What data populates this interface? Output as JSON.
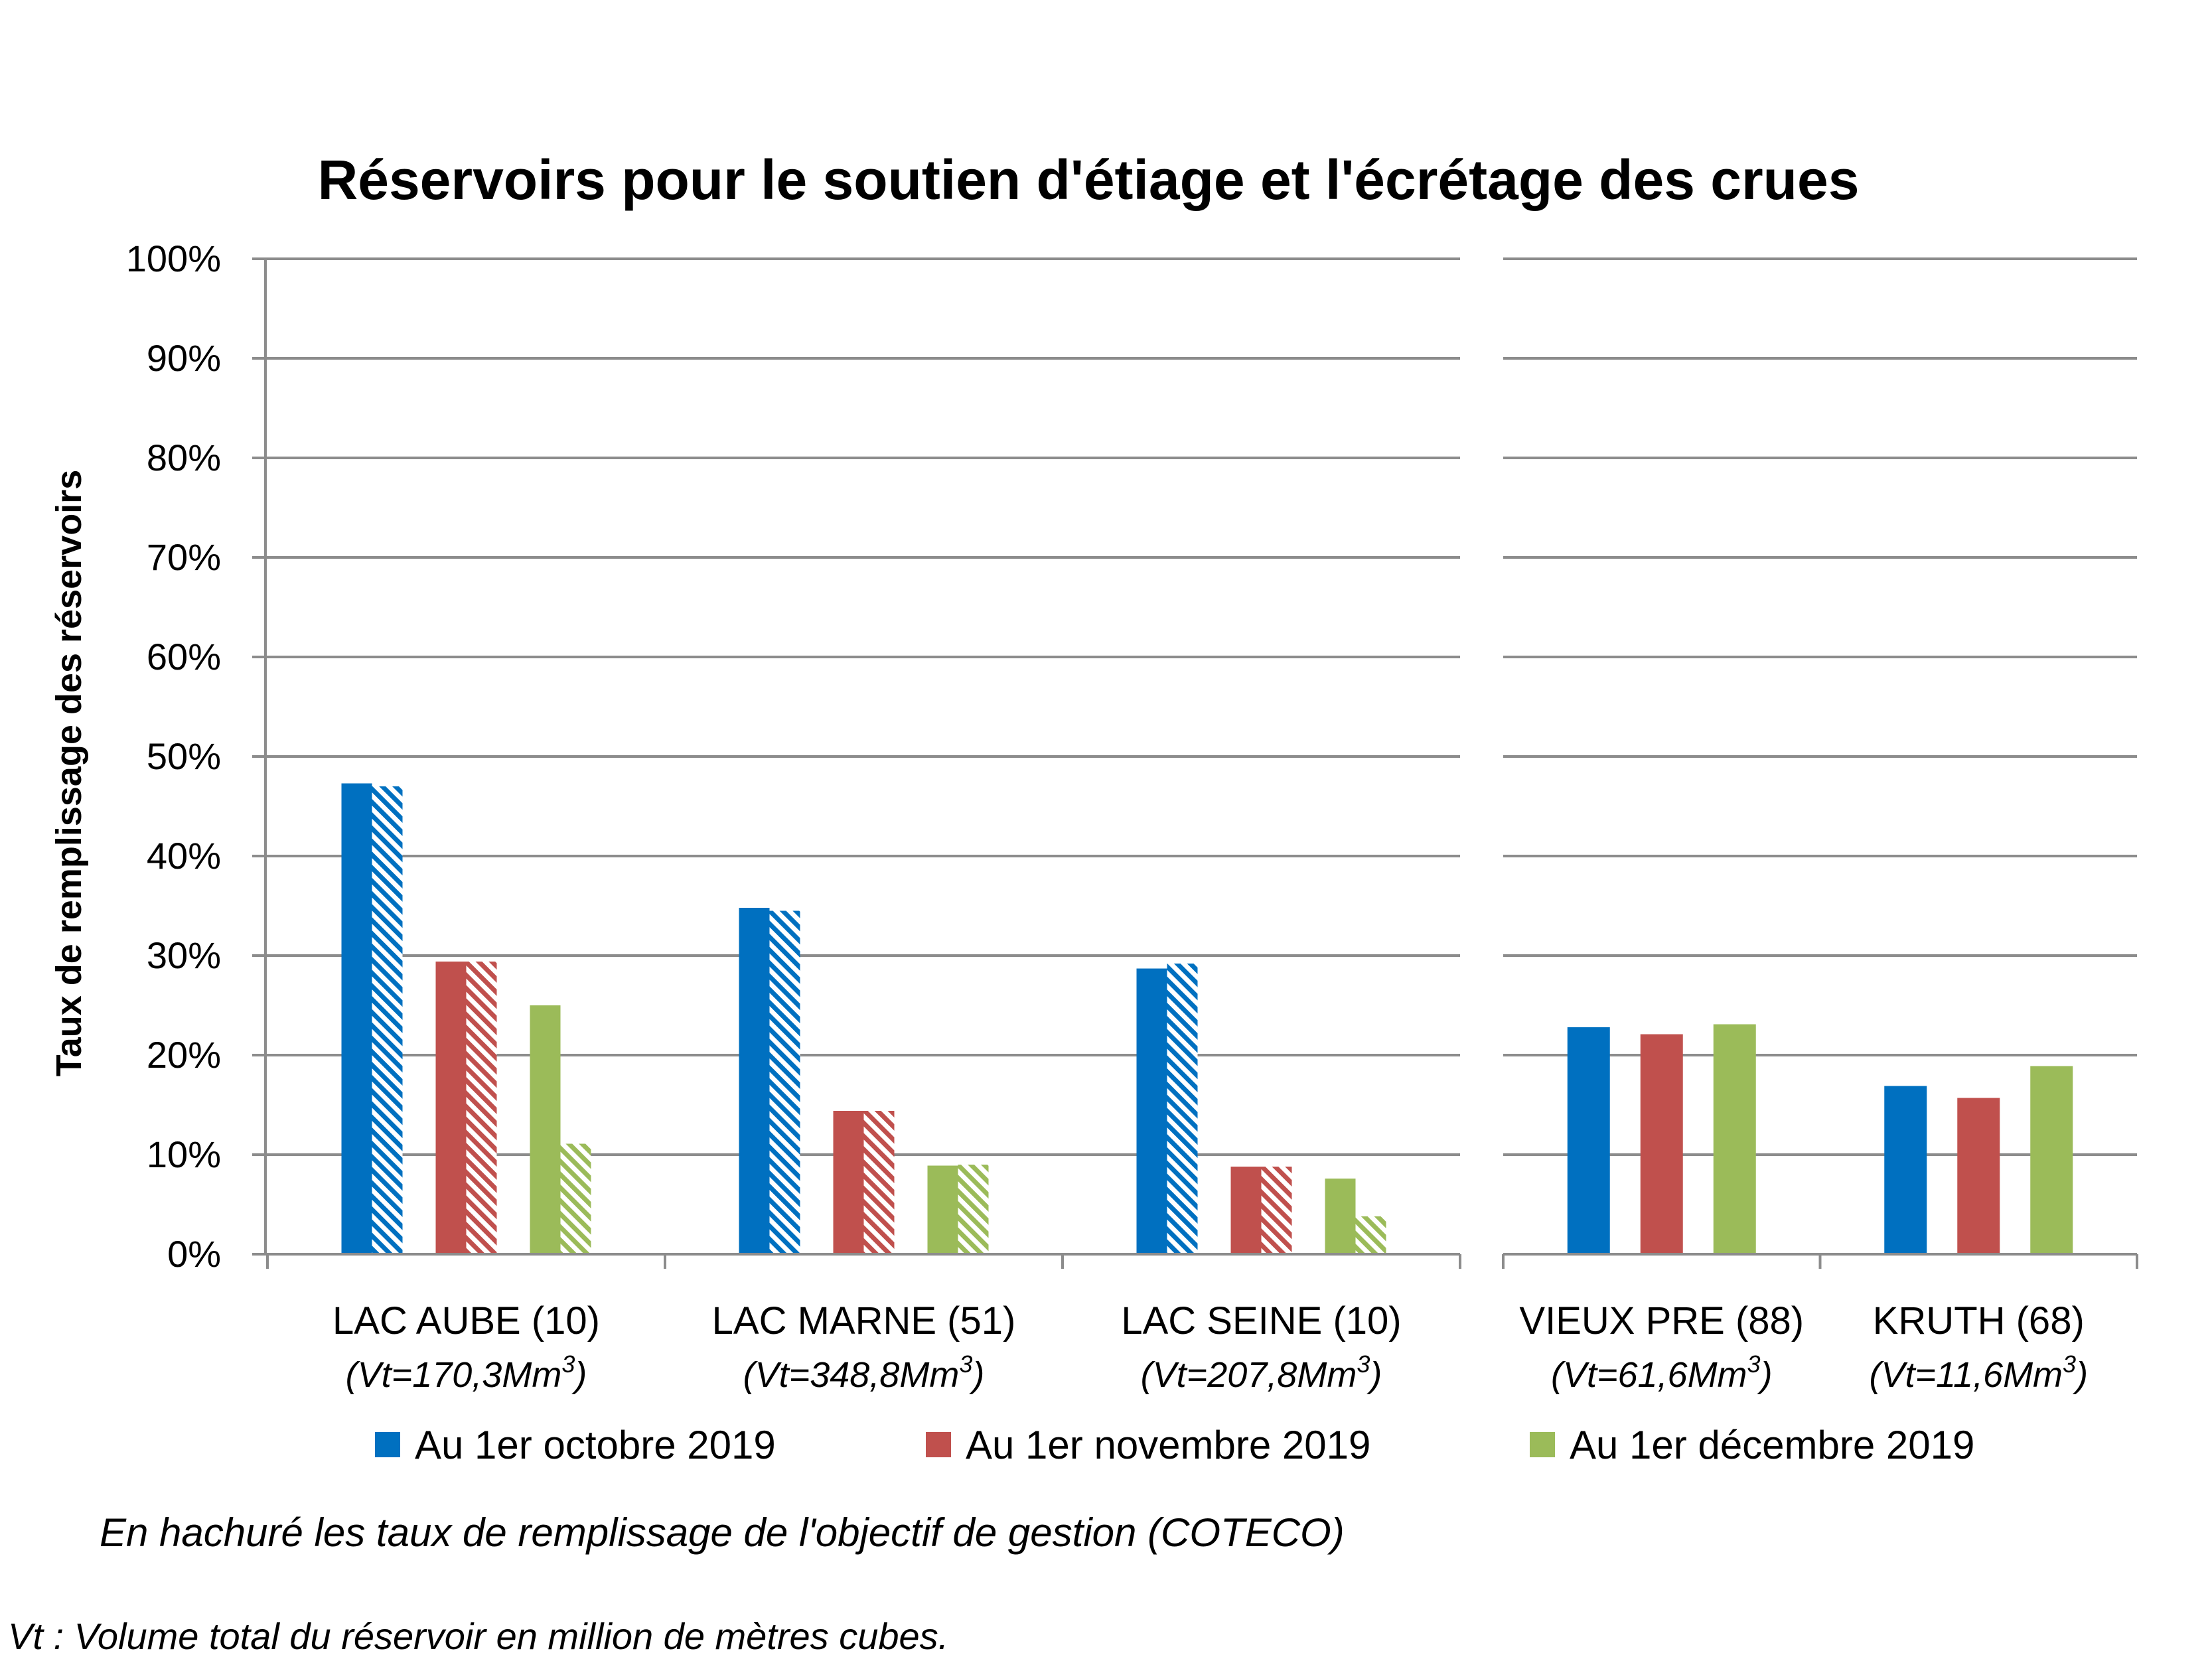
{
  "chart_data": {
    "type": "bar",
    "title": "Réservoirs pour le soutien d'étiage et l'écrétage des crues",
    "ylabel": "Taux de remplissage des réservoirs",
    "xlabel": "",
    "ylim": [
      0,
      100
    ],
    "y_ticks": [
      "0%",
      "10%",
      "20%",
      "30%",
      "40%",
      "50%",
      "60%",
      "70%",
      "80%",
      "90%",
      "100%"
    ],
    "grid": true,
    "legend_position": "bottom",
    "panels": [
      {
        "categories": [
          {
            "name": "LAC AUBE (10)",
            "volume_prefix": "(Vt=170,3Mm",
            "volume_suffix": ")"
          },
          {
            "name": "LAC MARNE (51)",
            "volume_prefix": "(Vt=348,8Mm",
            "volume_suffix": ")"
          },
          {
            "name": "LAC SEINE (10)",
            "volume_prefix": "(Vt=207,8Mm",
            "volume_suffix": ")"
          }
        ],
        "series": [
          {
            "name": "Au 1er octobre 2019",
            "color": "#0070c0",
            "values": [
              47.3,
              34.8,
              28.7
            ],
            "objective": [
              47.0,
              34.5,
              29.2
            ]
          },
          {
            "name": "Au 1er novembre 2019",
            "color": "#c0504d",
            "values": [
              29.4,
              14.4,
              8.8
            ],
            "objective": [
              29.4,
              14.4,
              8.8
            ]
          },
          {
            "name": "Au 1er décembre 2019",
            "color": "#9bbb59",
            "values": [
              25.0,
              8.9,
              7.6
            ],
            "objective": [
              11.1,
              9.0,
              3.8
            ]
          }
        ]
      },
      {
        "categories": [
          {
            "name": "VIEUX PRE (88)",
            "volume_prefix": "(Vt=61,6Mm",
            "volume_suffix": ")"
          },
          {
            "name": "KRUTH (68)",
            "volume_prefix": "(Vt=11,6Mm",
            "volume_suffix": ")"
          }
        ],
        "series": [
          {
            "name": "Au 1er octobre 2019",
            "color": "#0070c0",
            "values": [
              22.8,
              16.9
            ]
          },
          {
            "name": "Au 1er novembre 2019",
            "color": "#c0504d",
            "values": [
              22.1,
              15.7
            ]
          },
          {
            "name": "Au 1er décembre 2019",
            "color": "#9bbb59",
            "values": [
              23.1,
              18.9
            ]
          }
        ]
      }
    ],
    "legend": [
      {
        "label": "Au 1er octobre 2019",
        "color": "#0070c0"
      },
      {
        "label": "Au 1er novembre 2019",
        "color": "#c0504d"
      },
      {
        "label": "Au 1er décembre 2019",
        "color": "#9bbb59"
      }
    ],
    "volume_superscript": "3",
    "notes": {
      "hatch": "En hachuré les taux de remplissage de l'objectif de gestion (COTECO)",
      "vt": "Vt : Volume total du réservoir en million de mètres cubes."
    }
  }
}
